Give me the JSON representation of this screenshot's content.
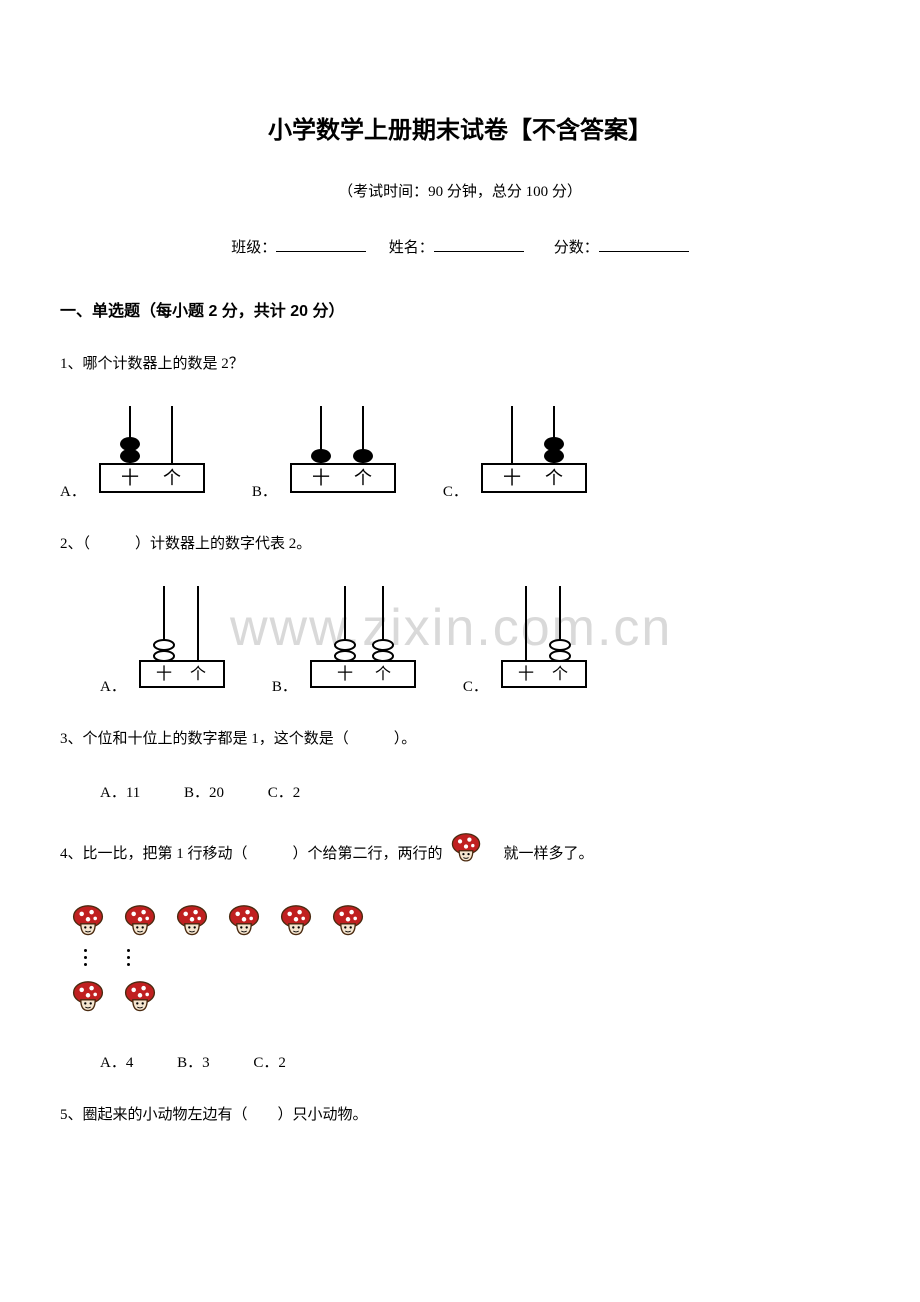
{
  "title": "小学数学上册期末试卷【不含答案】",
  "subtitle": "（考试时间：90 分钟，总分 100 分）",
  "info": {
    "class_label": "班级：",
    "name_label": "姓名：",
    "score_label": "分数："
  },
  "section1": {
    "header": "一、单选题（每小题 2 分，共计 20 分）",
    "q1": {
      "text": "1、哪个计数器上的数是 2？",
      "options": {
        "A": "A．",
        "B": "B．",
        "C": "C．"
      },
      "abacus_labels": {
        "tens": "十",
        "ones": "个"
      },
      "style": {
        "stroke": "#000000",
        "fill": "#000000",
        "line_width": 2
      }
    },
    "q2": {
      "text": "2、（　　　）计数器上的数字代表 2。",
      "options": {
        "A": "A．",
        "B": "B．",
        "C": "C．"
      },
      "abacus_labels": {
        "tens": "十",
        "ones": "个"
      },
      "style": {
        "stroke": "#000000",
        "fill": "#ffffff",
        "ellipse_rx": 10,
        "ellipse_ry": 5
      }
    },
    "q3": {
      "text": "3、个位和十位上的数字都是 1，这个数是（　　　）。",
      "options": {
        "A": "A．11",
        "B": "B．20",
        "C": "C．2"
      }
    },
    "q4": {
      "text_before": "4、比一比，把第 1 行移动（　　　）个给第二行，两行的",
      "text_after": "　就一样多了。",
      "options": {
        "A": "A．4",
        "B": "B．3",
        "C": "C．2"
      },
      "mushroom": {
        "cap_color": "#c02020",
        "dot_color": "#ffffff",
        "stem_color": "#f5e6d0",
        "outline": "#4a2a10",
        "row1_count": 6,
        "row2_count": 2
      }
    },
    "q5": {
      "text": "5、圈起来的小动物左边有（　　）只小动物。"
    }
  },
  "watermark": "www.zixin.com.cn"
}
